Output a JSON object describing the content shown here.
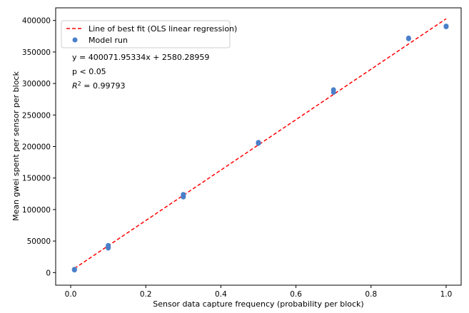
{
  "chart_data": {
    "type": "scatter",
    "xlabel": "Sensor data capture frequency (probability per block)",
    "ylabel": "Mean gwei spent per sensor per block",
    "xlim": [
      -0.04,
      1.04
    ],
    "ylim": [
      -20000,
      420000
    ],
    "x_ticks": [
      0.0,
      0.2,
      0.4,
      0.6,
      0.8,
      1.0
    ],
    "x_tick_labels": [
      "0.0",
      "0.2",
      "0.4",
      "0.6",
      "0.8",
      "1.0"
    ],
    "y_ticks": [
      0,
      50000,
      100000,
      150000,
      200000,
      250000,
      300000,
      350000,
      400000
    ],
    "y_tick_labels": [
      "0",
      "50000",
      "100000",
      "150000",
      "200000",
      "250000",
      "300000",
      "350000",
      "400000"
    ],
    "grid": false,
    "legend": {
      "placement": "top-left",
      "entries": [
        {
          "label": "Line of best fit (OLS linear regression)",
          "style": "dashed-line",
          "color": "#ff0000"
        },
        {
          "label": "Model run",
          "style": "marker",
          "color": "#4a7fc9"
        }
      ]
    },
    "annotations": {
      "equation": "y = 400071.95334x + 2580.28959",
      "p_value": "p < 0.05",
      "r2_value": " = 0.99793"
    },
    "fit": {
      "slope": 400071.95334,
      "intercept": 2580.28959,
      "x_range": [
        0.01,
        1.0
      ],
      "color": "#ff0000"
    },
    "series": [
      {
        "name": "Model run",
        "color": "#4a7fc9",
        "points": [
          [
            0.01,
            4200
          ],
          [
            0.01,
            5200
          ],
          [
            0.01,
            4700
          ],
          [
            0.1,
            39000
          ],
          [
            0.1,
            41000
          ],
          [
            0.1,
            43000
          ],
          [
            0.3,
            120000
          ],
          [
            0.3,
            122000
          ],
          [
            0.3,
            124000
          ],
          [
            0.5,
            205000
          ],
          [
            0.5,
            206500
          ],
          [
            0.7,
            286000
          ],
          [
            0.7,
            290000
          ],
          [
            0.9,
            371000
          ],
          [
            0.9,
            372000
          ],
          [
            1.0,
            390000
          ],
          [
            1.0,
            391000
          ]
        ]
      }
    ]
  }
}
